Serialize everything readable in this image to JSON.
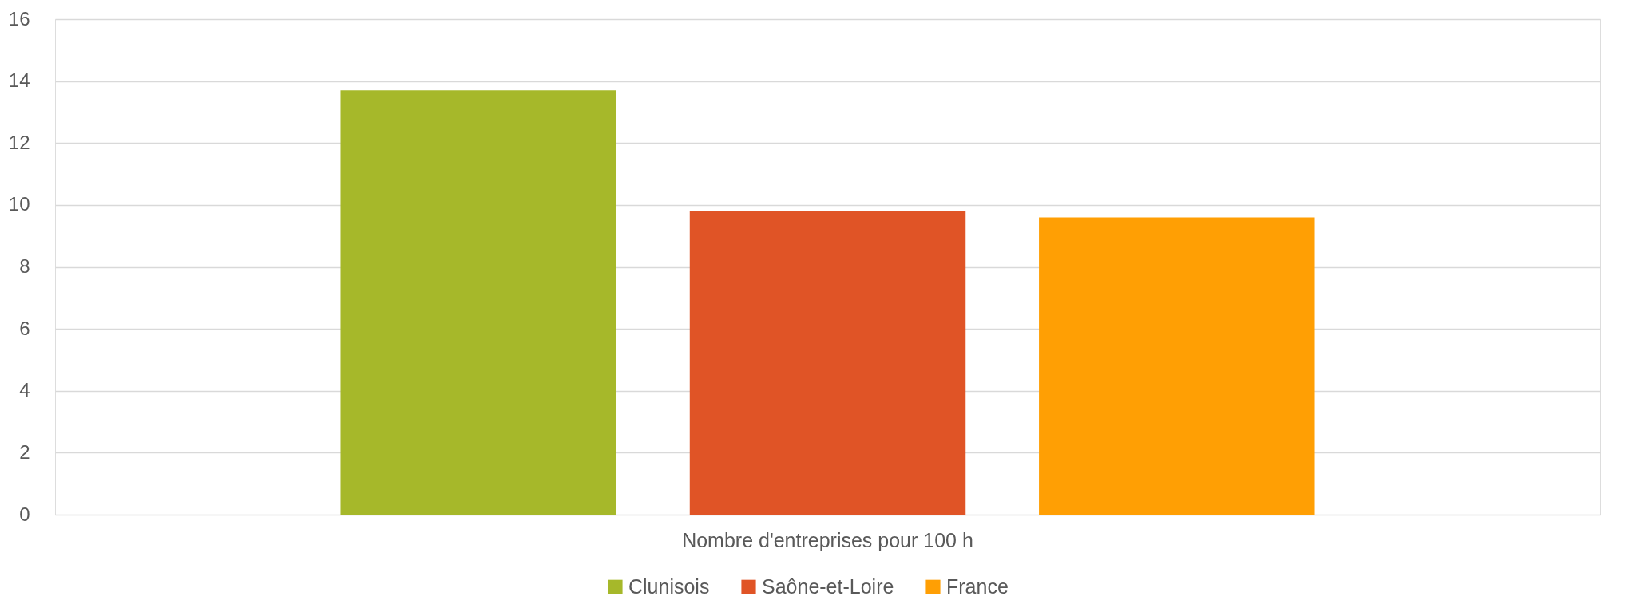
{
  "chart_data": {
    "type": "bar",
    "categories": [
      "Nombre d'entreprises pour 100 h"
    ],
    "series": [
      {
        "name": "Clunisois",
        "color": "#a6b82a",
        "values": [
          13.7
        ]
      },
      {
        "name": "Saône-et-Loire",
        "color": "#e05426",
        "values": [
          9.8
        ]
      },
      {
        "name": "France",
        "color": "#ff9f04",
        "values": [
          9.6
        ]
      }
    ],
    "ylim": [
      0,
      16
    ],
    "yticks": [
      0,
      2,
      4,
      6,
      8,
      10,
      12,
      14,
      16
    ],
    "grid": "y",
    "legend": "bottom"
  }
}
